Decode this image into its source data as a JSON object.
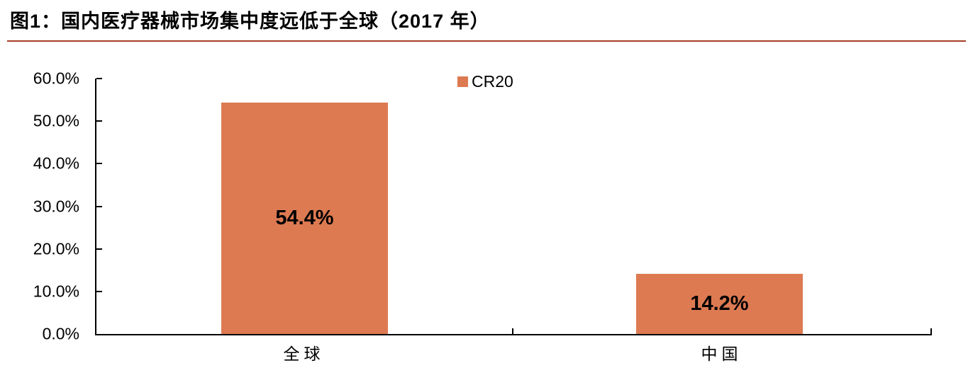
{
  "figure": {
    "title": "图1：国内医疗器械市场集中度远低于全球（2017 年）"
  },
  "chart_data": {
    "type": "bar",
    "title": "图1：国内医疗器械市场集中度远低于全球（2017 年）",
    "categories": [
      "全球",
      "中国"
    ],
    "series": [
      {
        "name": "CR20",
        "values": [
          54.4,
          14.2
        ]
      }
    ],
    "value_labels": [
      "54.4%",
      "14.2%"
    ],
    "xlabel": "",
    "ylabel": "",
    "ylim": [
      0,
      60
    ],
    "y_ticks": [
      "60.0%",
      "50.0%",
      "40.0%",
      "30.0%",
      "20.0%",
      "10.0%",
      "0.0%"
    ],
    "grid": "off",
    "legend": {
      "position": "top-center",
      "entries": [
        "CR20"
      ]
    },
    "colors": {
      "bar": "#DD7A52",
      "title_rule": "#A63D28",
      "axis": "#000000",
      "background": "#FFFFFF"
    }
  }
}
